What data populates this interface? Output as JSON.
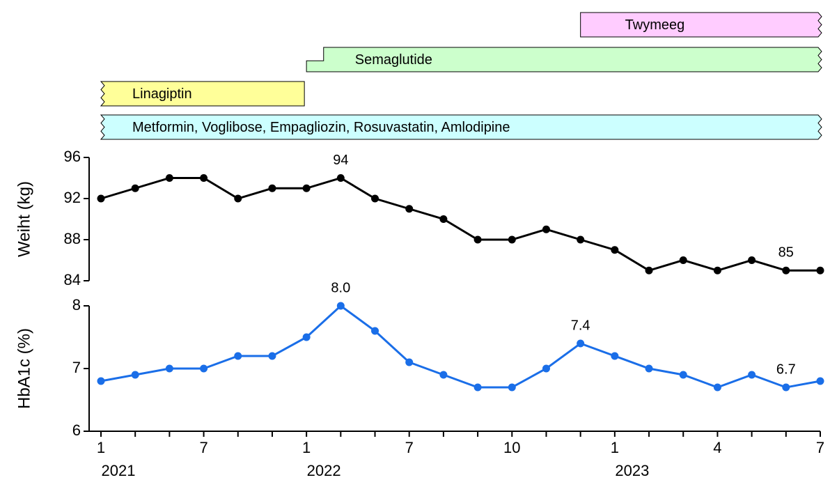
{
  "medications": [
    {
      "label": "Twymeeg",
      "color": "#ffccff",
      "start": 14,
      "end": 21,
      "continues_before": false,
      "continues_after": true,
      "row": 0
    },
    {
      "label": "Semaglutide",
      "color": "#ccffcc",
      "start": 6,
      "step_at": 6.5,
      "end": 21,
      "continues_before": false,
      "continues_after": true,
      "row": 1
    },
    {
      "label": "Linagiptin",
      "color": "#ffff99",
      "start": 0,
      "end": 6,
      "continues_before": true,
      "continues_after": false,
      "row": 2
    },
    {
      "label": "Metformin, Voglibose, Empagliozin, Rosuvastatin, Amlodipine",
      "color": "#ccffff",
      "start": 0,
      "end": 21,
      "continues_before": true,
      "continues_after": true,
      "row": 3
    }
  ],
  "chart_data": [
    {
      "type": "line",
      "y_label": "Weiht (kg)",
      "color": "#000000",
      "values": [
        92,
        93,
        94,
        94,
        92,
        93,
        93,
        94,
        92,
        91,
        90,
        88,
        88,
        89,
        88,
        87,
        85,
        86,
        85,
        86,
        85,
        85
      ],
      "value_labels": [
        null,
        null,
        null,
        null,
        null,
        null,
        null,
        "94",
        null,
        null,
        null,
        null,
        null,
        null,
        null,
        null,
        null,
        null,
        null,
        null,
        "85",
        null
      ],
      "ylim": [
        84,
        96
      ],
      "yticks": [
        84,
        88,
        92,
        96
      ]
    },
    {
      "type": "line",
      "y_label": "HbA1c (%)",
      "color": "#1a6ee8",
      "categories": [
        "1",
        null,
        null,
        "7",
        null,
        null,
        "1",
        null,
        null,
        "7",
        null,
        null,
        "10",
        null,
        null,
        "1",
        null,
        null,
        "4",
        null,
        null,
        "7"
      ],
      "year_labels": [
        "2021",
        null,
        null,
        null,
        null,
        null,
        "2022",
        null,
        null,
        null,
        null,
        null,
        null,
        null,
        null,
        "2023",
        null,
        null,
        null,
        null,
        null,
        null
      ],
      "values": [
        6.8,
        6.9,
        7.0,
        7.0,
        7.2,
        7.2,
        7.5,
        8.0,
        7.6,
        7.1,
        6.9,
        6.7,
        6.7,
        7.0,
        7.4,
        7.2,
        7.0,
        6.9,
        6.7,
        6.9,
        6.7,
        6.8
      ],
      "value_labels": [
        null,
        null,
        null,
        null,
        null,
        null,
        null,
        "8.0",
        null,
        null,
        null,
        null,
        null,
        null,
        "7.4",
        null,
        null,
        null,
        null,
        null,
        "6.7",
        null
      ],
      "ylim": [
        6,
        8
      ],
      "yticks": [
        6,
        7,
        8
      ]
    }
  ]
}
